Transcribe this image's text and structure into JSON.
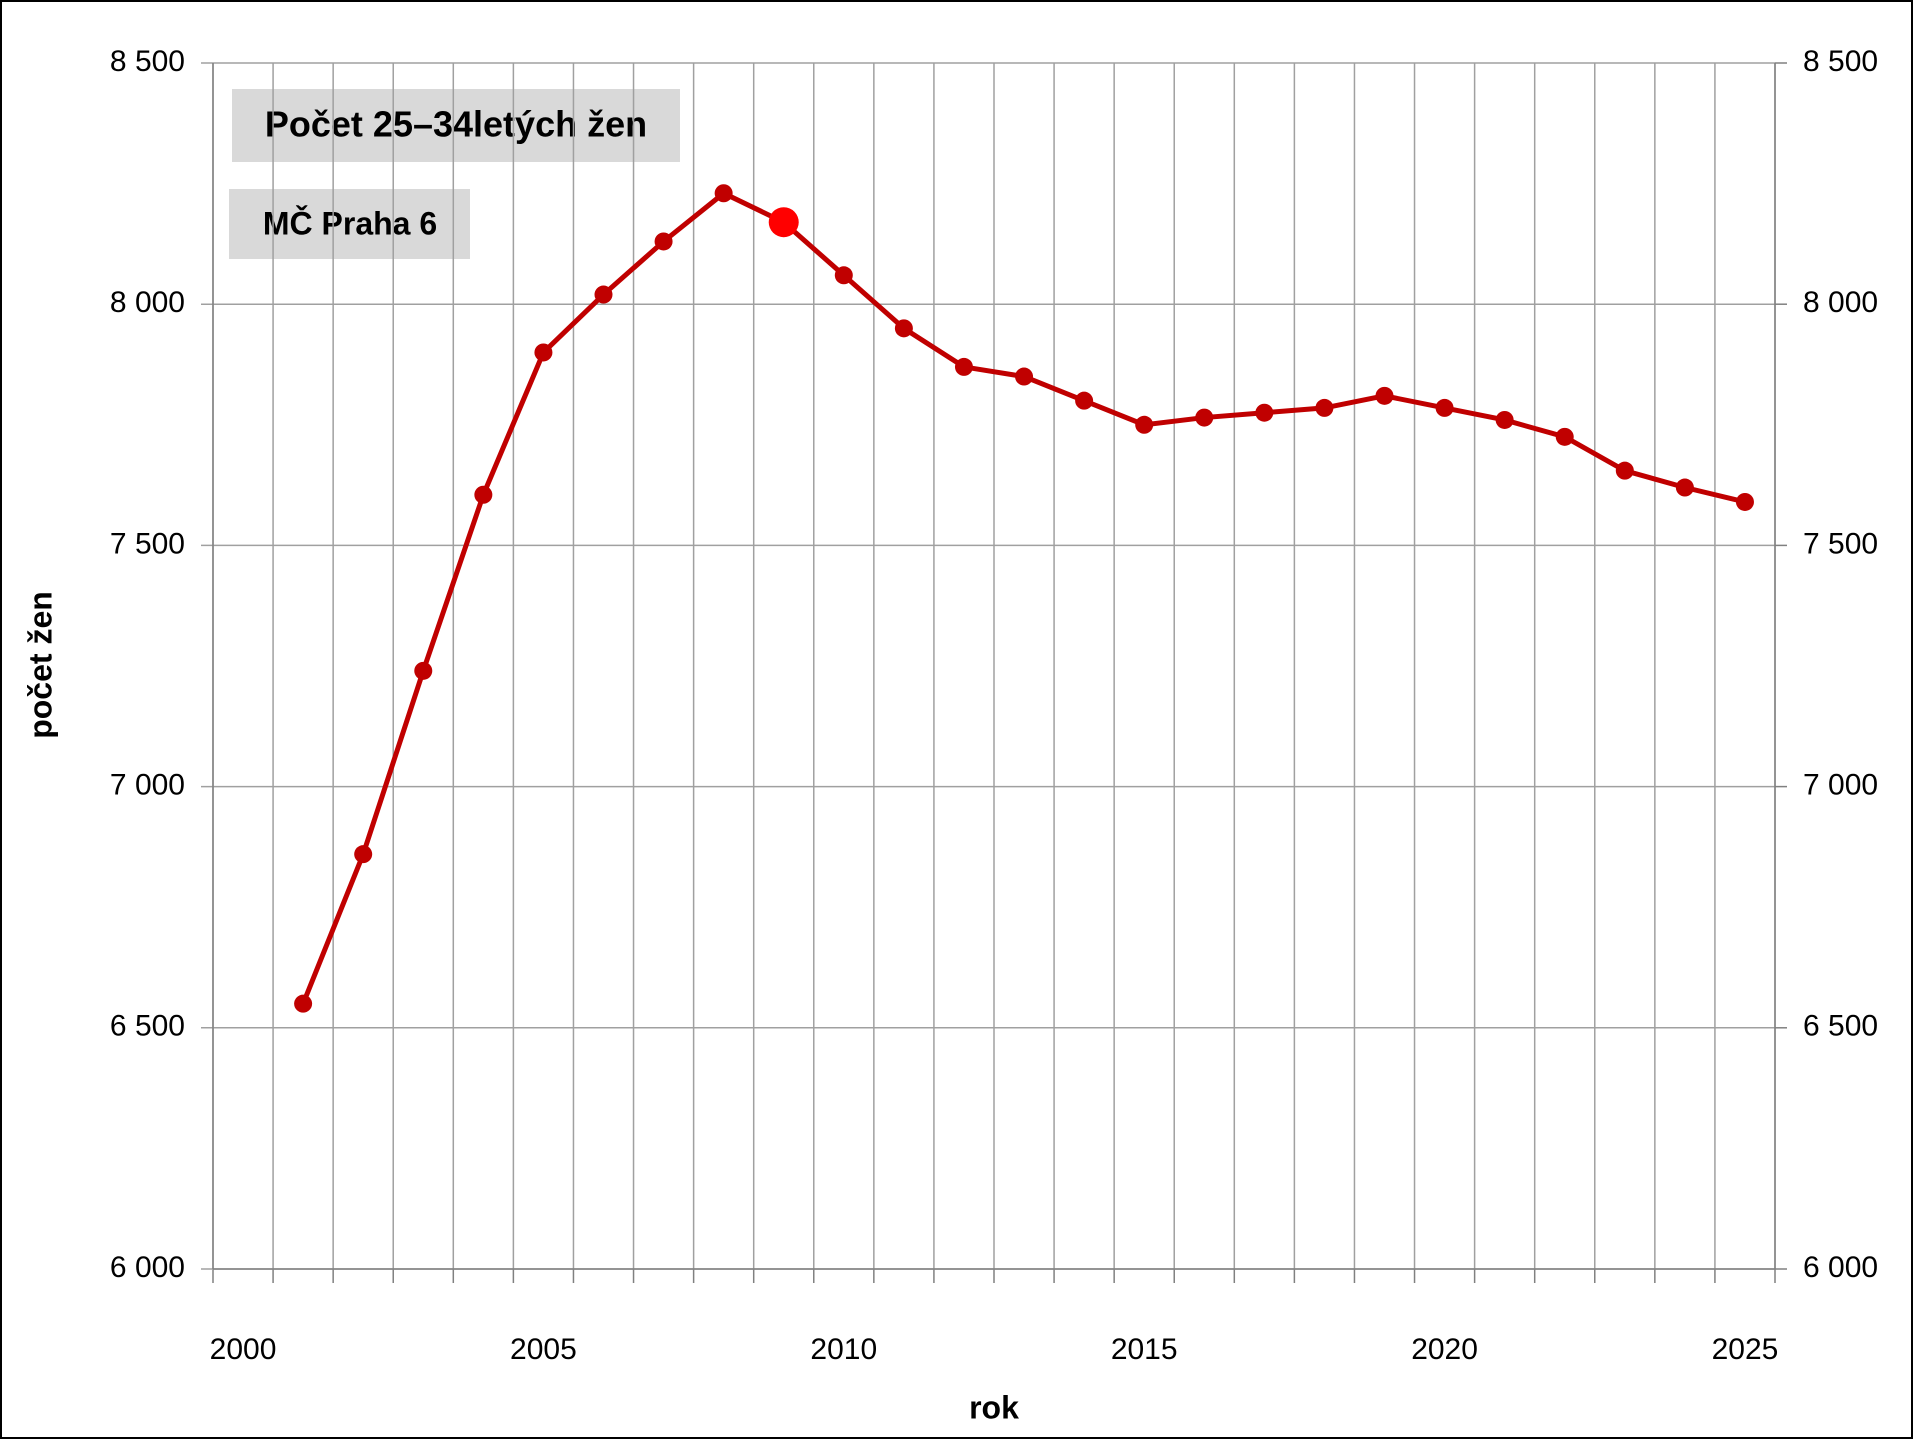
{
  "chart_data": {
    "type": "line",
    "title": "Počet 25–34letých žen",
    "subtitle": "MČ Praha 6",
    "x_label": "rok",
    "y_label": "počet žen",
    "categories": [
      "2000",
      null,
      null,
      null,
      null,
      "2005",
      null,
      null,
      null,
      null,
      "2010",
      null,
      null,
      null,
      null,
      "2015",
      null,
      null,
      null,
      null,
      "2020",
      null,
      null,
      null,
      null,
      "2025"
    ],
    "series": [
      {
        "name": "počet žen",
        "color": "#c00000",
        "values": [
          null,
          6550,
          6860,
          7240,
          7605,
          7900,
          8020,
          8130,
          8230,
          8170,
          8060,
          7950,
          7870,
          7850,
          7800,
          7750,
          7765,
          7775,
          7785,
          7810,
          7785,
          7760,
          7725,
          7655,
          7620,
          7590
        ]
      }
    ],
    "highlight": {
      "index": 9,
      "color": "#ff0000"
    },
    "ylim": [
      6000,
      8500
    ],
    "yticks": [
      {
        "value": 6000,
        "label": "6 000"
      },
      {
        "value": 6500,
        "label": "6 500"
      },
      {
        "value": 7000,
        "label": "7 000"
      },
      {
        "value": 7500,
        "label": "7 500"
      },
      {
        "value": 8000,
        "label": "8 000"
      },
      {
        "value": 8500,
        "label": "8 500"
      }
    ],
    "y2lim": [
      6000,
      8500
    ],
    "y2ticks": [
      {
        "value": 6000,
        "label": "6 000"
      },
      {
        "value": 6500,
        "label": "6 500"
      },
      {
        "value": 7000,
        "label": "7 000"
      },
      {
        "value": 7500,
        "label": "7 500"
      },
      {
        "value": 8000,
        "label": "8 000"
      },
      {
        "value": 8500,
        "label": "8 500"
      }
    ],
    "grid": true
  }
}
